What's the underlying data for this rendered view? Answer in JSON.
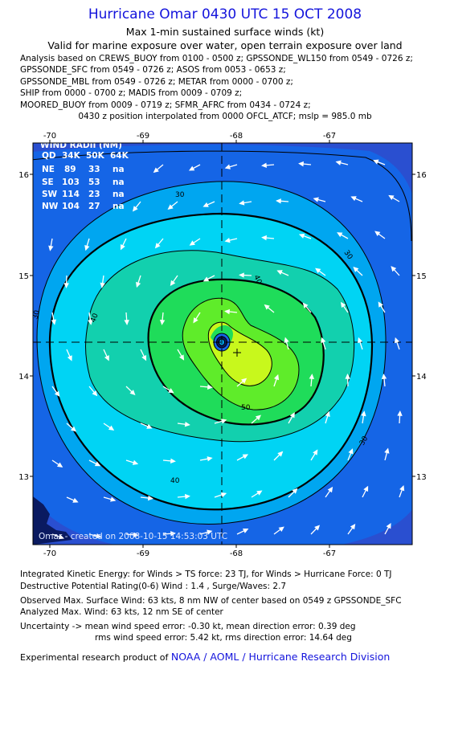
{
  "header": {
    "title": "Hurricane Omar 0430 UTC 15 OCT 2008",
    "subtitle1": "Max 1-min sustained surface winds (kt)",
    "subtitle2": "Valid for marine exposure over water, open terrain exposure over land"
  },
  "analysis_lines": [
    "Analysis based on  CREWS_BUOY from 0100 - 0500 z;  GPSSONDE_WL150 from 0549 - 0726 z;",
    "GPSSONDE_SFC from 0549 - 0726 z;  ASOS from 0053 - 0653 z;",
    "GPSSONDE_MBL from 0549 - 0726 z;  METAR from 0000 - 0700 z;",
    "SHIP from 0000 - 0700 z;  MADIS from 0009 - 0709 z;",
    "MOORED_BUOY from 0009 - 0719 z;  SFMR_AFRC from 0434 - 0724 z;"
  ],
  "position_note": "0430 z position interpolated from 0000 OFCL_ATCF; mslp = 985.0 mb",
  "map": {
    "lon_ticks": [
      "-70",
      "-69",
      "-68",
      "-67"
    ],
    "lat_ticks": [
      "16",
      "15",
      "14",
      "13"
    ],
    "contour_labels": [
      "30",
      "30",
      "30",
      "30",
      "40",
      "40",
      "40",
      "50"
    ],
    "wind_radii": {
      "title": "WIND RADII (NM)",
      "header": [
        "QD",
        "34K",
        "50K",
        "64K"
      ],
      "rows": [
        [
          "NE",
          "89",
          "33",
          "na"
        ],
        [
          "SE",
          "103",
          "53",
          "na"
        ],
        [
          "SW",
          "114",
          "23",
          "na"
        ],
        [
          "NW",
          "104",
          "27",
          "na"
        ]
      ]
    },
    "created": "Omar - created on 2008-10-15 14:53:03 UTC",
    "colors": {
      "frame": "#2a4fd0",
      "band_30": "#1565e6",
      "band_35": "#00a6f0",
      "band_40": "#00d4f4",
      "band_45": "#12d0ae",
      "band_50": "#1fdc5a",
      "band_55": "#5fec2a",
      "band_60": "#c8f81c",
      "land": "#0a1a60"
    }
  },
  "footer": {
    "ike": "Integrated Kinetic Energy:  for Winds > TS force: 23 TJ,  for Winds > Hurricane Force: 0 TJ",
    "dpr": "Destructive Potential Rating(0-6)   Wind : 1.4 , Surge/Waves: 2.7",
    "observed": "Observed Max. Surface Wind: 63 kts, 8 nm NW of center based on 0549 z GPSSONDE_SFC",
    "analyzed": "Analyzed Max. Wind: 63 kts, 12 nm SE of center",
    "uncertainty1": "Uncertainty -> mean wind speed error:  -0.30 kt,   mean direction error: 0.39 deg",
    "uncertainty2": "rms wind speed error: 5.42 kt,   rms direction error: 14.64 deg",
    "product_prefix": "Experimental research product of ",
    "product_link": "NOAA / AOML / Hurricane Research Division"
  }
}
